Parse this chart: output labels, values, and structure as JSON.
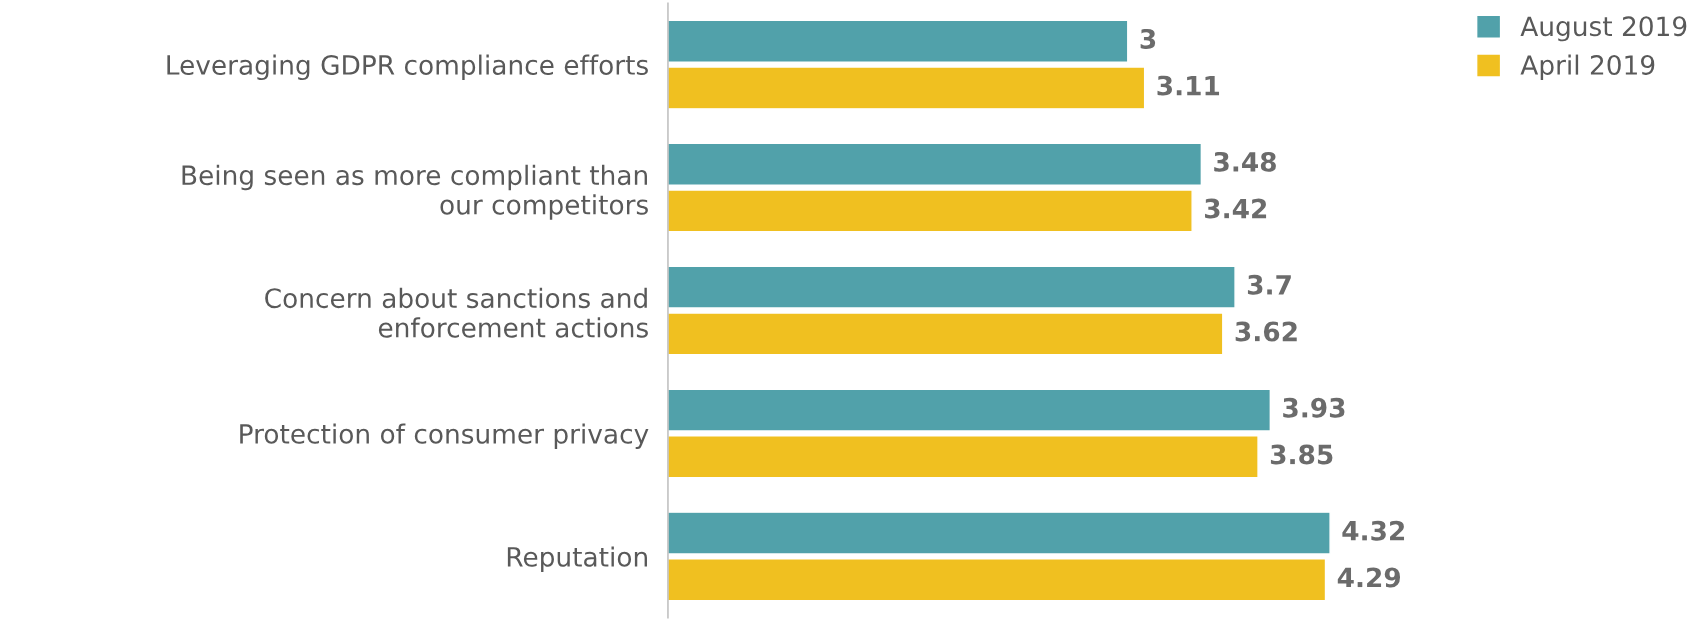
{
  "chart_data": {
    "type": "bar",
    "orientation": "horizontal",
    "categories": [
      "Leveraging GDPR compliance efforts",
      "Being seen as more compliant than\nour competitors",
      "Concern about sanctions and\nenforcement actions",
      "Protection of consumer privacy",
      "Reputation"
    ],
    "series": [
      {
        "name": "August 2019",
        "color": "#51a1aa",
        "values": [
          3,
          3.48,
          3.7,
          3.93,
          4.32
        ]
      },
      {
        "name": "April 2019",
        "color": "#f0c020",
        "values": [
          3.11,
          3.42,
          3.62,
          3.85,
          4.29
        ]
      }
    ],
    "data_labels": true,
    "legend": "top right",
    "grid": false,
    "tick_labels": "y"
  }
}
